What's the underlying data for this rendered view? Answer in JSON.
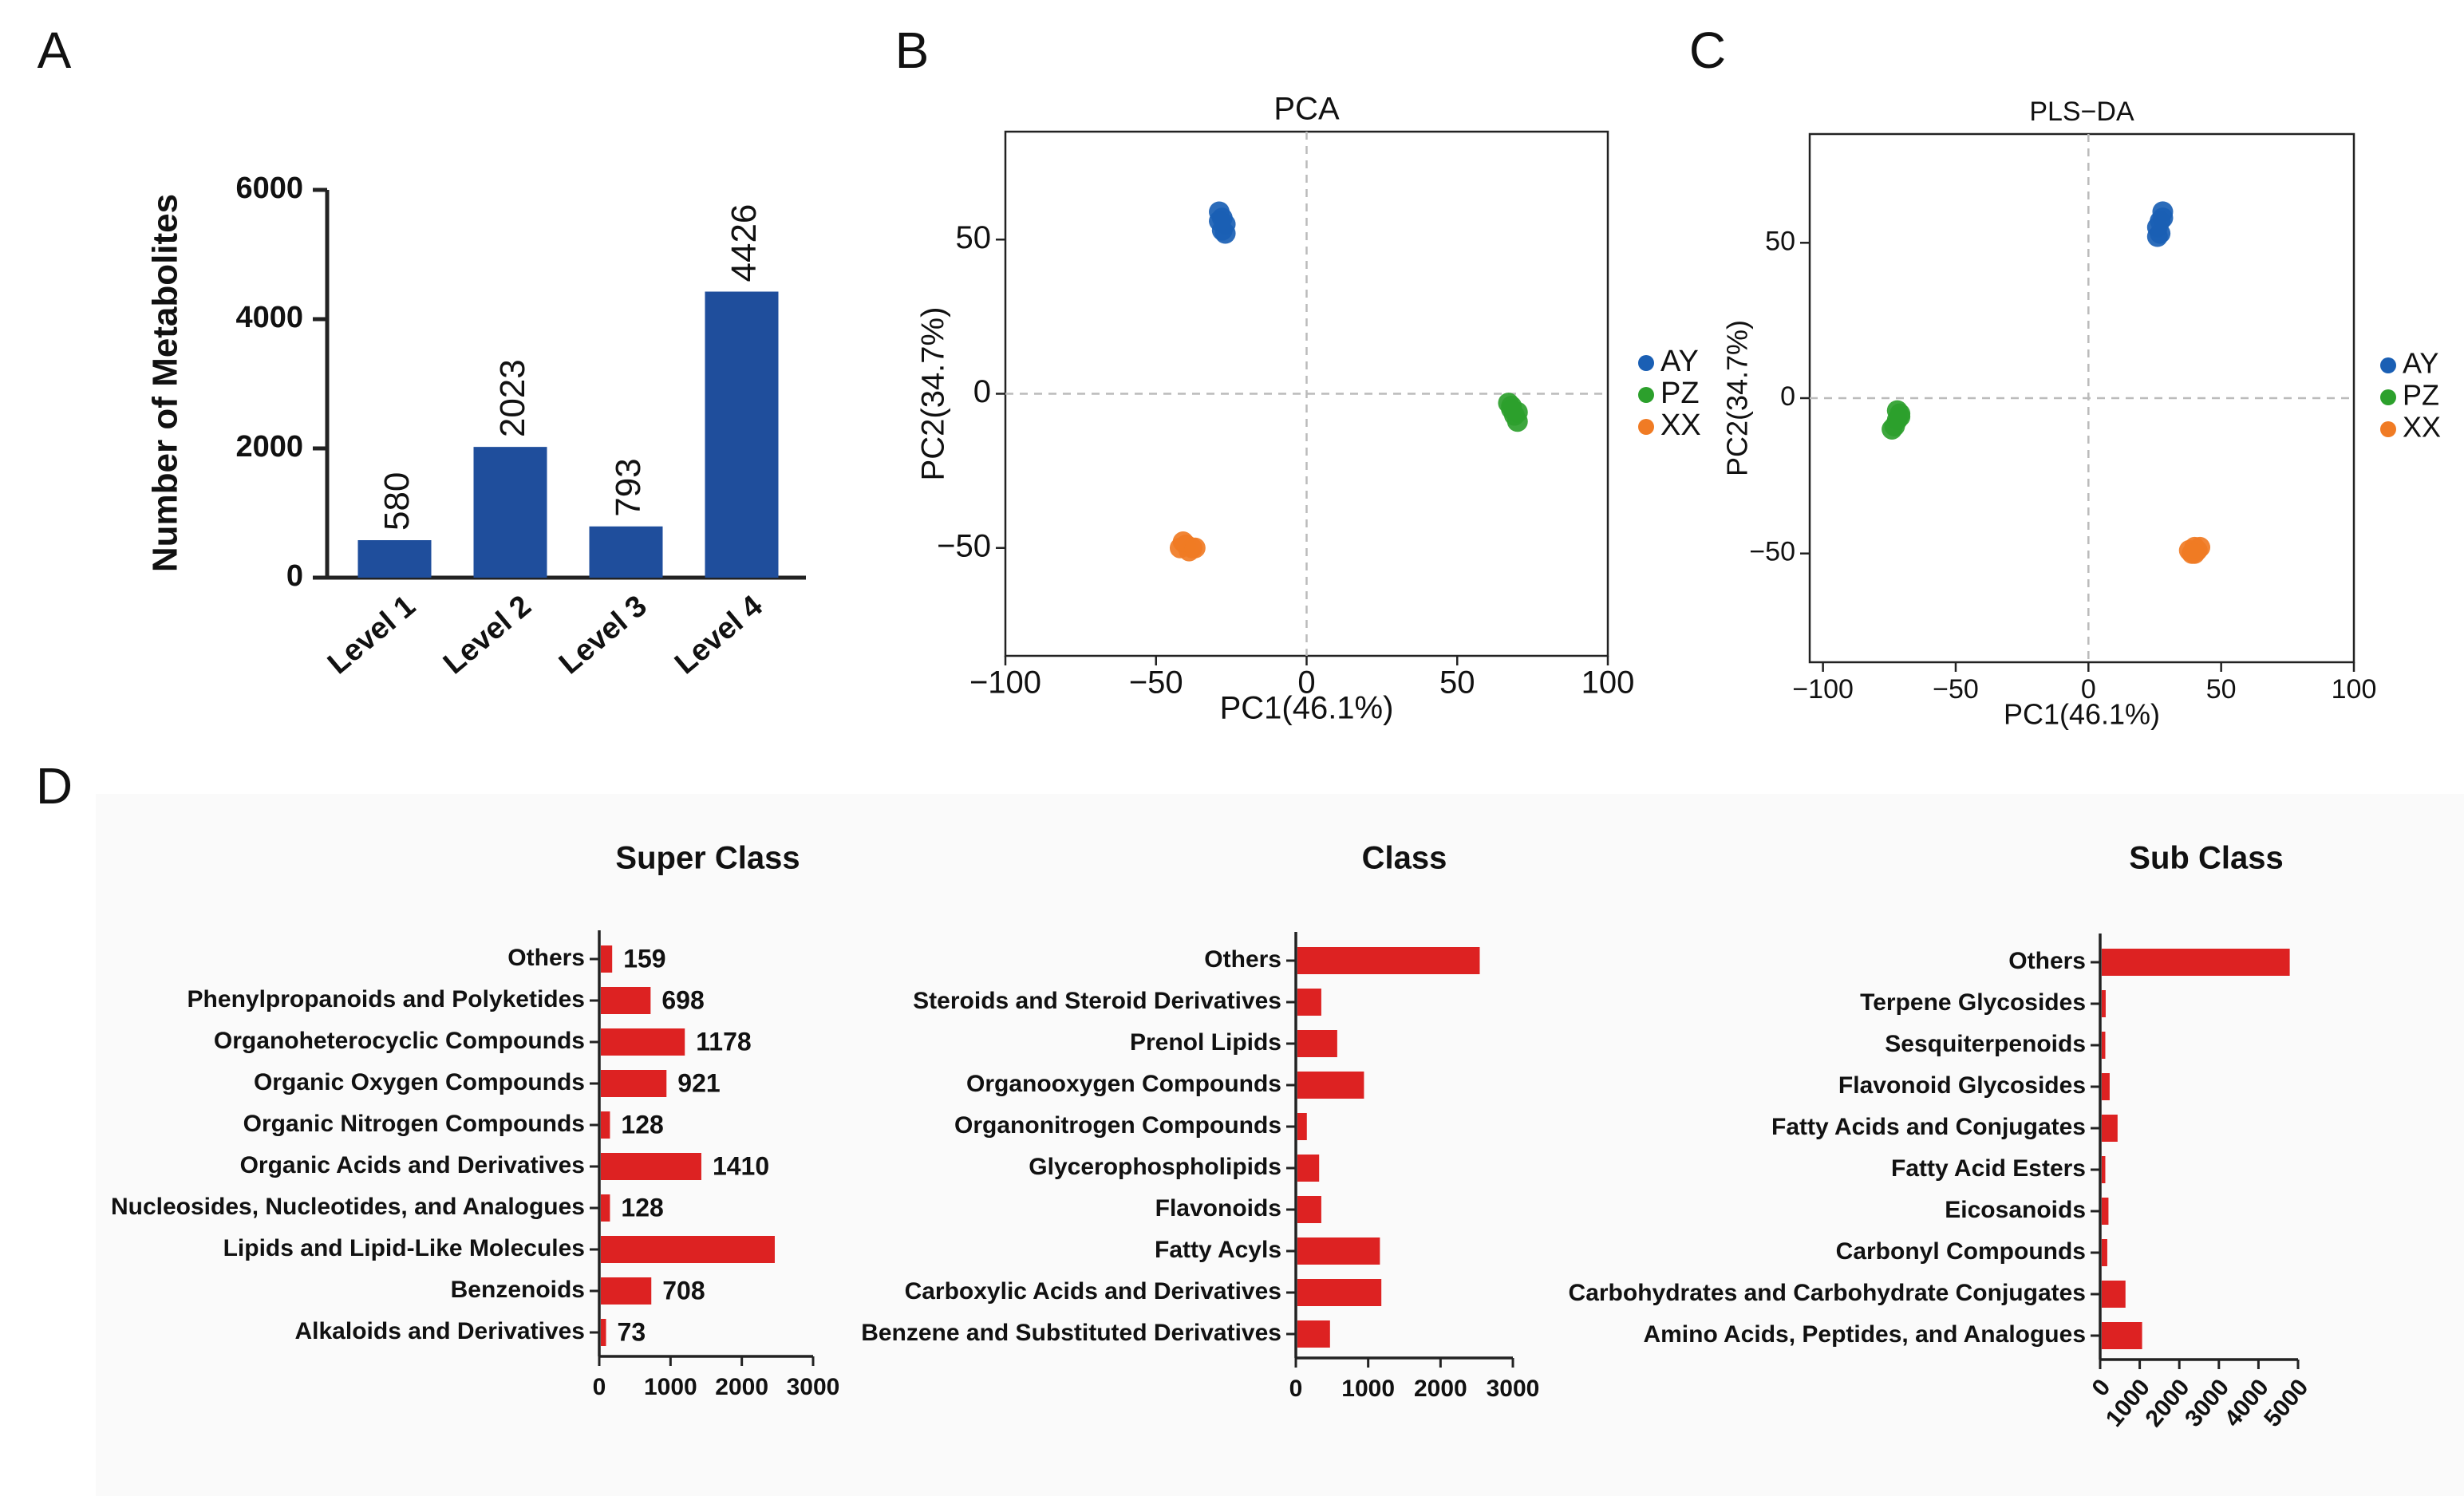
{
  "colors": {
    "bar_blue": "#1f4e9c",
    "bar_red": "#dd2222",
    "AY": "#1a5fb4",
    "PZ": "#2ca02c",
    "XX": "#f07b24",
    "axis": "#222222",
    "ref_line": "#bbbbbb"
  },
  "panels": {
    "A": "A",
    "B": "B",
    "C": "C",
    "D": "D"
  },
  "chart_data": [
    {
      "id": "A",
      "type": "bar",
      "categories": [
        "Level 1",
        "Level 2",
        "Level 3",
        "Level 4"
      ],
      "values": [
        580,
        2023,
        793,
        4426
      ],
      "value_labels": [
        "580",
        "2023",
        "793",
        "4426"
      ],
      "ylabel": "Number of Metabolites",
      "ylim": [
        0,
        6000
      ],
      "yticks": [
        0,
        2000,
        4000,
        6000
      ],
      "ytick_labels": [
        "0",
        "2000",
        "4000",
        "6000"
      ]
    },
    {
      "id": "B",
      "type": "scatter",
      "title": "PCA",
      "xlabel": "PC1(46.1%)",
      "ylabel": "PC2(34.7%)",
      "xlim": [
        -100,
        100
      ],
      "ylim": [
        -85,
        85
      ],
      "xticks": [
        -100,
        -50,
        0,
        50,
        100
      ],
      "xtick_labels": [
        "−100",
        "−50",
        "0",
        "50",
        "100"
      ],
      "yticks": [
        -50,
        0,
        50
      ],
      "ytick_labels": [
        "−50",
        "0",
        "50"
      ],
      "legend": [
        "AY",
        "PZ",
        "XX"
      ],
      "series": [
        {
          "name": "AY",
          "points": [
            [
              -29,
              59
            ],
            [
              -28,
              57
            ],
            [
              -27,
              55
            ],
            [
              -28,
              53
            ],
            [
              -27,
              52
            ],
            [
              -29,
              56
            ]
          ]
        },
        {
          "name": "PZ",
          "points": [
            [
              67,
              -3
            ],
            [
              68,
              -5
            ],
            [
              69,
              -7
            ],
            [
              70,
              -9
            ],
            [
              68,
              -4
            ],
            [
              70,
              -6
            ]
          ]
        },
        {
          "name": "XX",
          "points": [
            [
              -40,
              -49
            ],
            [
              -42,
              -50
            ],
            [
              -38,
              -50
            ],
            [
              -39,
              -51
            ],
            [
              -41,
              -48
            ],
            [
              -37,
              -50
            ]
          ]
        }
      ]
    },
    {
      "id": "C",
      "type": "scatter",
      "title": "PLS−DA",
      "xlabel": "PC1(46.1%)",
      "ylabel": "PC2(34.7%)",
      "xlim": [
        -105,
        100
      ],
      "ylim": [
        -85,
        85
      ],
      "xticks": [
        -100,
        -50,
        0,
        50,
        100
      ],
      "xtick_labels": [
        "−100",
        "−50",
        "0",
        "50",
        "100"
      ],
      "yticks": [
        -50,
        0,
        50
      ],
      "ytick_labels": [
        "−50",
        "0",
        "50"
      ],
      "legend": [
        "AY",
        "PZ",
        "XX"
      ],
      "series": [
        {
          "name": "AY",
          "points": [
            [
              28,
              60
            ],
            [
              27,
              57
            ],
            [
              26,
              55
            ],
            [
              27,
              53
            ],
            [
              28,
              58
            ],
            [
              26,
              52
            ]
          ]
        },
        {
          "name": "PZ",
          "points": [
            [
              -71,
              -5
            ],
            [
              -72,
              -7
            ],
            [
              -73,
              -9
            ],
            [
              -74,
              -10
            ],
            [
              -71,
              -6
            ],
            [
              -72,
              -4
            ]
          ]
        },
        {
          "name": "XX",
          "points": [
            [
              40,
              -48
            ],
            [
              41,
              -49
            ],
            [
              39,
              -50
            ],
            [
              42,
              -48
            ],
            [
              38,
              -49
            ],
            [
              40,
              -50
            ]
          ]
        }
      ]
    },
    {
      "id": "D1",
      "type": "bar",
      "orientation": "horizontal",
      "title": "Super Class",
      "categories": [
        "Others",
        "Phenylpropanoids and Polyketides",
        "Organoheterocyclic Compounds",
        "Organic Oxygen Compounds",
        "Organic Nitrogen Compounds",
        "Organic Acids and Derivatives",
        "Nucleosides, Nucleotides, and Analogues",
        "Lipids and Lipid-Like Molecules",
        "Benzenoids",
        "Alkaloids and Derivatives"
      ],
      "values": [
        159,
        698,
        1178,
        921,
        128,
        1410,
        128,
        2440,
        708,
        73
      ],
      "value_labels": [
        "159",
        "698",
        "1178",
        "921",
        "128",
        "1410",
        "128",
        "",
        "708",
        "73"
      ],
      "xlim": [
        0,
        3000
      ],
      "xticks": [
        0,
        1000,
        2000,
        3000
      ],
      "xtick_labels": [
        "0",
        "1000",
        "2000",
        "3000"
      ]
    },
    {
      "id": "D2",
      "type": "bar",
      "orientation": "horizontal",
      "title": "Class",
      "categories": [
        "Others",
        "Steroids and Steroid Derivatives",
        "Prenol Lipids",
        "Organooxygen Compounds",
        "Organonitrogen Compounds",
        "Glycerophospholipids",
        "Flavonoids",
        "Fatty Acyls",
        "Carboxylic Acids and Derivatives",
        "Benzene and Substituted Derivatives"
      ],
      "values": [
        2520,
        330,
        550,
        920,
        130,
        300,
        330,
        1140,
        1160,
        450
      ],
      "xlim": [
        0,
        3000
      ],
      "xticks": [
        0,
        1000,
        2000,
        3000
      ],
      "xtick_labels": [
        "0",
        "1000",
        "2000",
        "3000"
      ]
    },
    {
      "id": "D3",
      "type": "bar",
      "orientation": "horizontal",
      "title": "Sub Class",
      "categories": [
        "Others",
        "Terpene Glycosides",
        "Sesquiterpenoids",
        "Flavonoid Glycosides",
        "Fatty Acids and Conjugates",
        "Fatty Acid Esters",
        "Eicosanoids",
        "Carbonyl Compounds",
        "Carbohydrates and Carbohydrate Conjugates",
        "Amino Acids, Peptides, and Analogues"
      ],
      "values": [
        4750,
        100,
        90,
        200,
        400,
        90,
        170,
        140,
        600,
        1020
      ],
      "xlim": [
        0,
        5000
      ],
      "xticks": [
        0,
        1000,
        2000,
        3000,
        4000,
        5000
      ],
      "xtick_labels": [
        "0",
        "1000",
        "2000",
        "3000",
        "4000",
        "5000"
      ]
    }
  ]
}
